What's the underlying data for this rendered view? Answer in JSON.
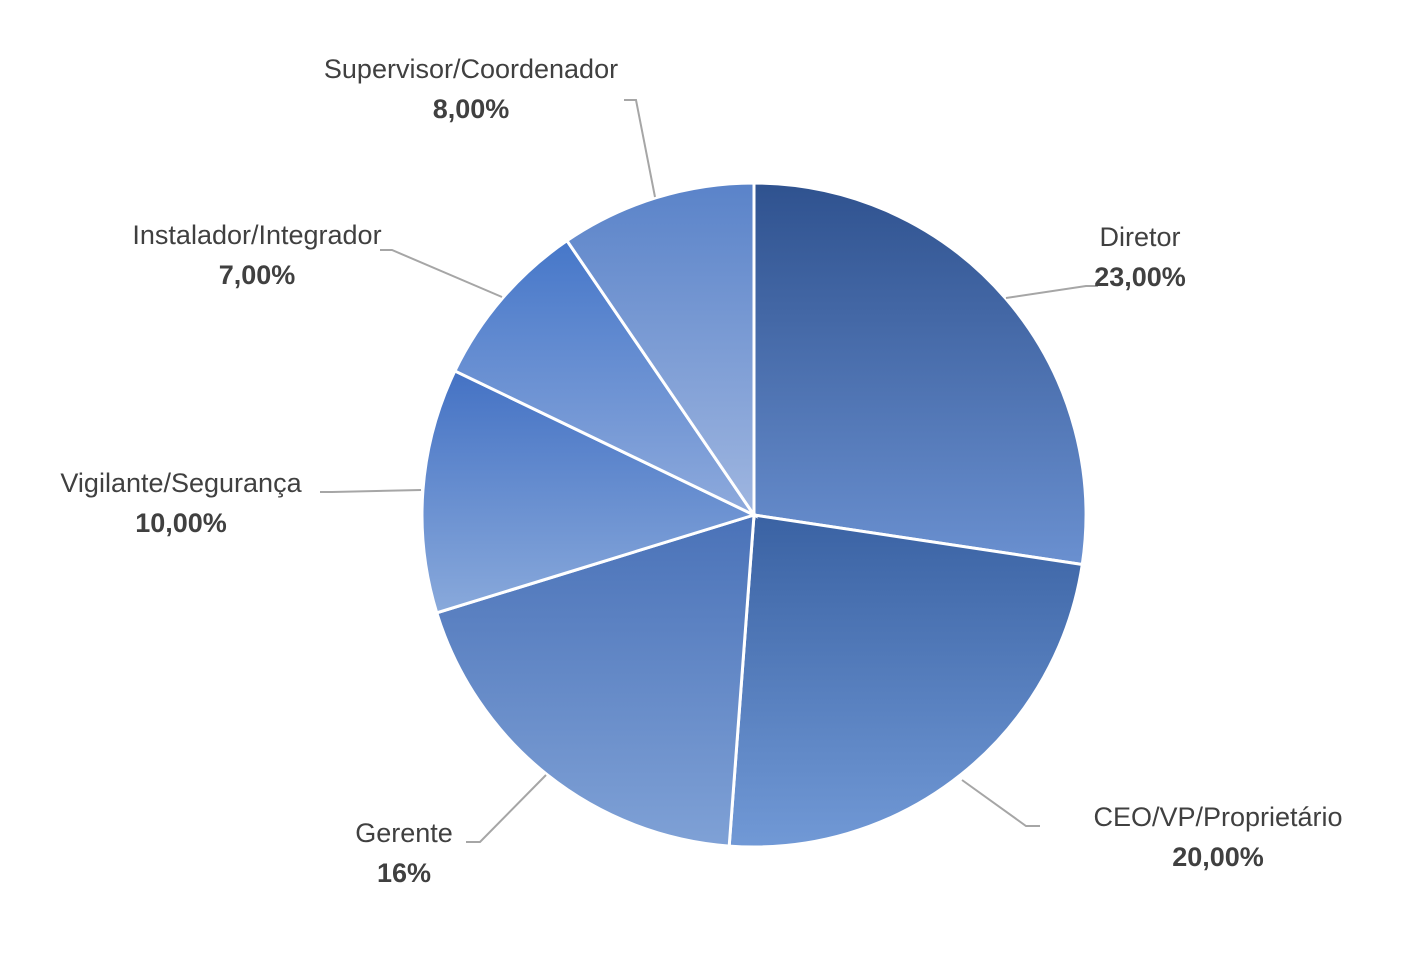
{
  "chart_data": {
    "type": "pie",
    "title": "",
    "start": "12 o'clock, clockwise",
    "slices": [
      {
        "category": "Diretor",
        "value": 23,
        "value_label": "23,00%",
        "color_dark": "#2f528f",
        "color_light": "#6a90d0"
      },
      {
        "category": "CEO/VP/Proprietário",
        "value": 20,
        "value_label": "20,00%",
        "color_dark": "#3a62a3",
        "color_light": "#7199d6"
      },
      {
        "category": "Gerente",
        "value": 16,
        "value_label": "16%",
        "color_dark": "#4a72b8",
        "color_light": "#7fa1d6"
      },
      {
        "category": "Vigilante/Segurança",
        "value": 10,
        "value_label": "10,00%",
        "color_dark": "#4472c4",
        "color_light": "#89a9db"
      },
      {
        "category": "Instalador/Integrador",
        "value": 7,
        "value_label": "7,00%",
        "color_dark": "#4677c9",
        "color_light": "#8eaadc"
      },
      {
        "category": "Supervisor/Coordenador",
        "value": 8,
        "value_label": "8,00%",
        "color_dark": "#5a83c9",
        "color_light": "#9fb6e0"
      }
    ],
    "label_color": "#404040",
    "leader_color": "#a6a6a6"
  }
}
